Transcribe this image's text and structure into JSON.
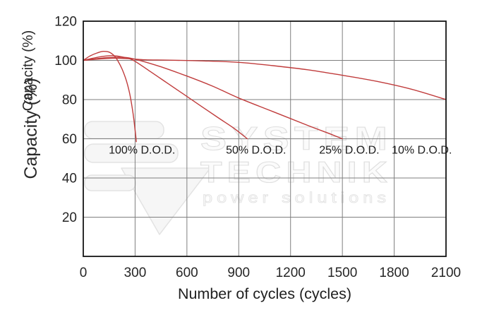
{
  "watermark": {
    "line1": "SYSTEM",
    "line2": "TECHNIK",
    "line3": "power solutions"
  },
  "chart_data": {
    "type": "line",
    "title": "",
    "xlabel": "Number of cycles (cycles)",
    "ylabel": "Capacity (%)",
    "xlim": [
      0,
      2100
    ],
    "ylim": [
      0,
      120
    ],
    "x_ticks": [
      0,
      300,
      600,
      900,
      1200,
      1500,
      1800,
      2100
    ],
    "y_ticks": [
      20,
      40,
      60,
      80,
      100,
      120
    ],
    "grid": true,
    "legend_position": "none",
    "line_color": "#c03c3c",
    "series": [
      {
        "name": "100% D.O.D.",
        "points": [
          [
            0,
            100
          ],
          [
            40,
            102.3
          ],
          [
            80,
            103.8
          ],
          [
            115,
            104.6
          ],
          [
            150,
            104.2
          ],
          [
            180,
            102.3
          ],
          [
            200,
            99.8
          ],
          [
            225,
            95.5
          ],
          [
            250,
            89.5
          ],
          [
            270,
            82.5
          ],
          [
            288,
            73
          ],
          [
            300,
            64.5
          ],
          [
            307,
            58.5
          ]
        ]
      },
      {
        "name": "50% D.O.D.",
        "points": [
          [
            0,
            100
          ],
          [
            50,
            101
          ],
          [
            110,
            102
          ],
          [
            170,
            102.4
          ],
          [
            230,
            101.7
          ],
          [
            290,
            100
          ],
          [
            380,
            94.8
          ],
          [
            480,
            88.8
          ],
          [
            580,
            82.8
          ],
          [
            680,
            76.8
          ],
          [
            780,
            70.8
          ],
          [
            870,
            65.5
          ],
          [
            950,
            60
          ]
        ]
      },
      {
        "name": "25% D.O.D.",
        "points": [
          [
            0,
            100
          ],
          [
            60,
            100.7
          ],
          [
            140,
            101.4
          ],
          [
            220,
            101.6
          ],
          [
            290,
            100.8
          ],
          [
            440,
            97
          ],
          [
            600,
            92
          ],
          [
            750,
            86.8
          ],
          [
            900,
            80.8
          ],
          [
            1100,
            73.8
          ],
          [
            1300,
            66.8
          ],
          [
            1420,
            62.8
          ],
          [
            1500,
            60
          ]
        ]
      },
      {
        "name": "10% D.O.D.",
        "points": [
          [
            0,
            100
          ],
          [
            80,
            100.6
          ],
          [
            170,
            101.1
          ],
          [
            260,
            100.9
          ],
          [
            360,
            100.3
          ],
          [
            500,
            100.1
          ],
          [
            700,
            99.7
          ],
          [
            900,
            99
          ],
          [
            1100,
            97.3
          ],
          [
            1300,
            95.2
          ],
          [
            1500,
            92.4
          ],
          [
            1700,
            89.3
          ],
          [
            1900,
            85.3
          ],
          [
            2100,
            80
          ]
        ]
      }
    ],
    "annotations": [
      {
        "text": "100% D.O.D.",
        "x": 340,
        "y": 52.5
      },
      {
        "text": "50% D.O.D.",
        "x": 1000,
        "y": 52.5
      },
      {
        "text": "25% D.O.D.",
        "x": 1540,
        "y": 52.5
      },
      {
        "text": "10% D.O.D.",
        "x": 1960,
        "y": 52.5
      }
    ]
  }
}
